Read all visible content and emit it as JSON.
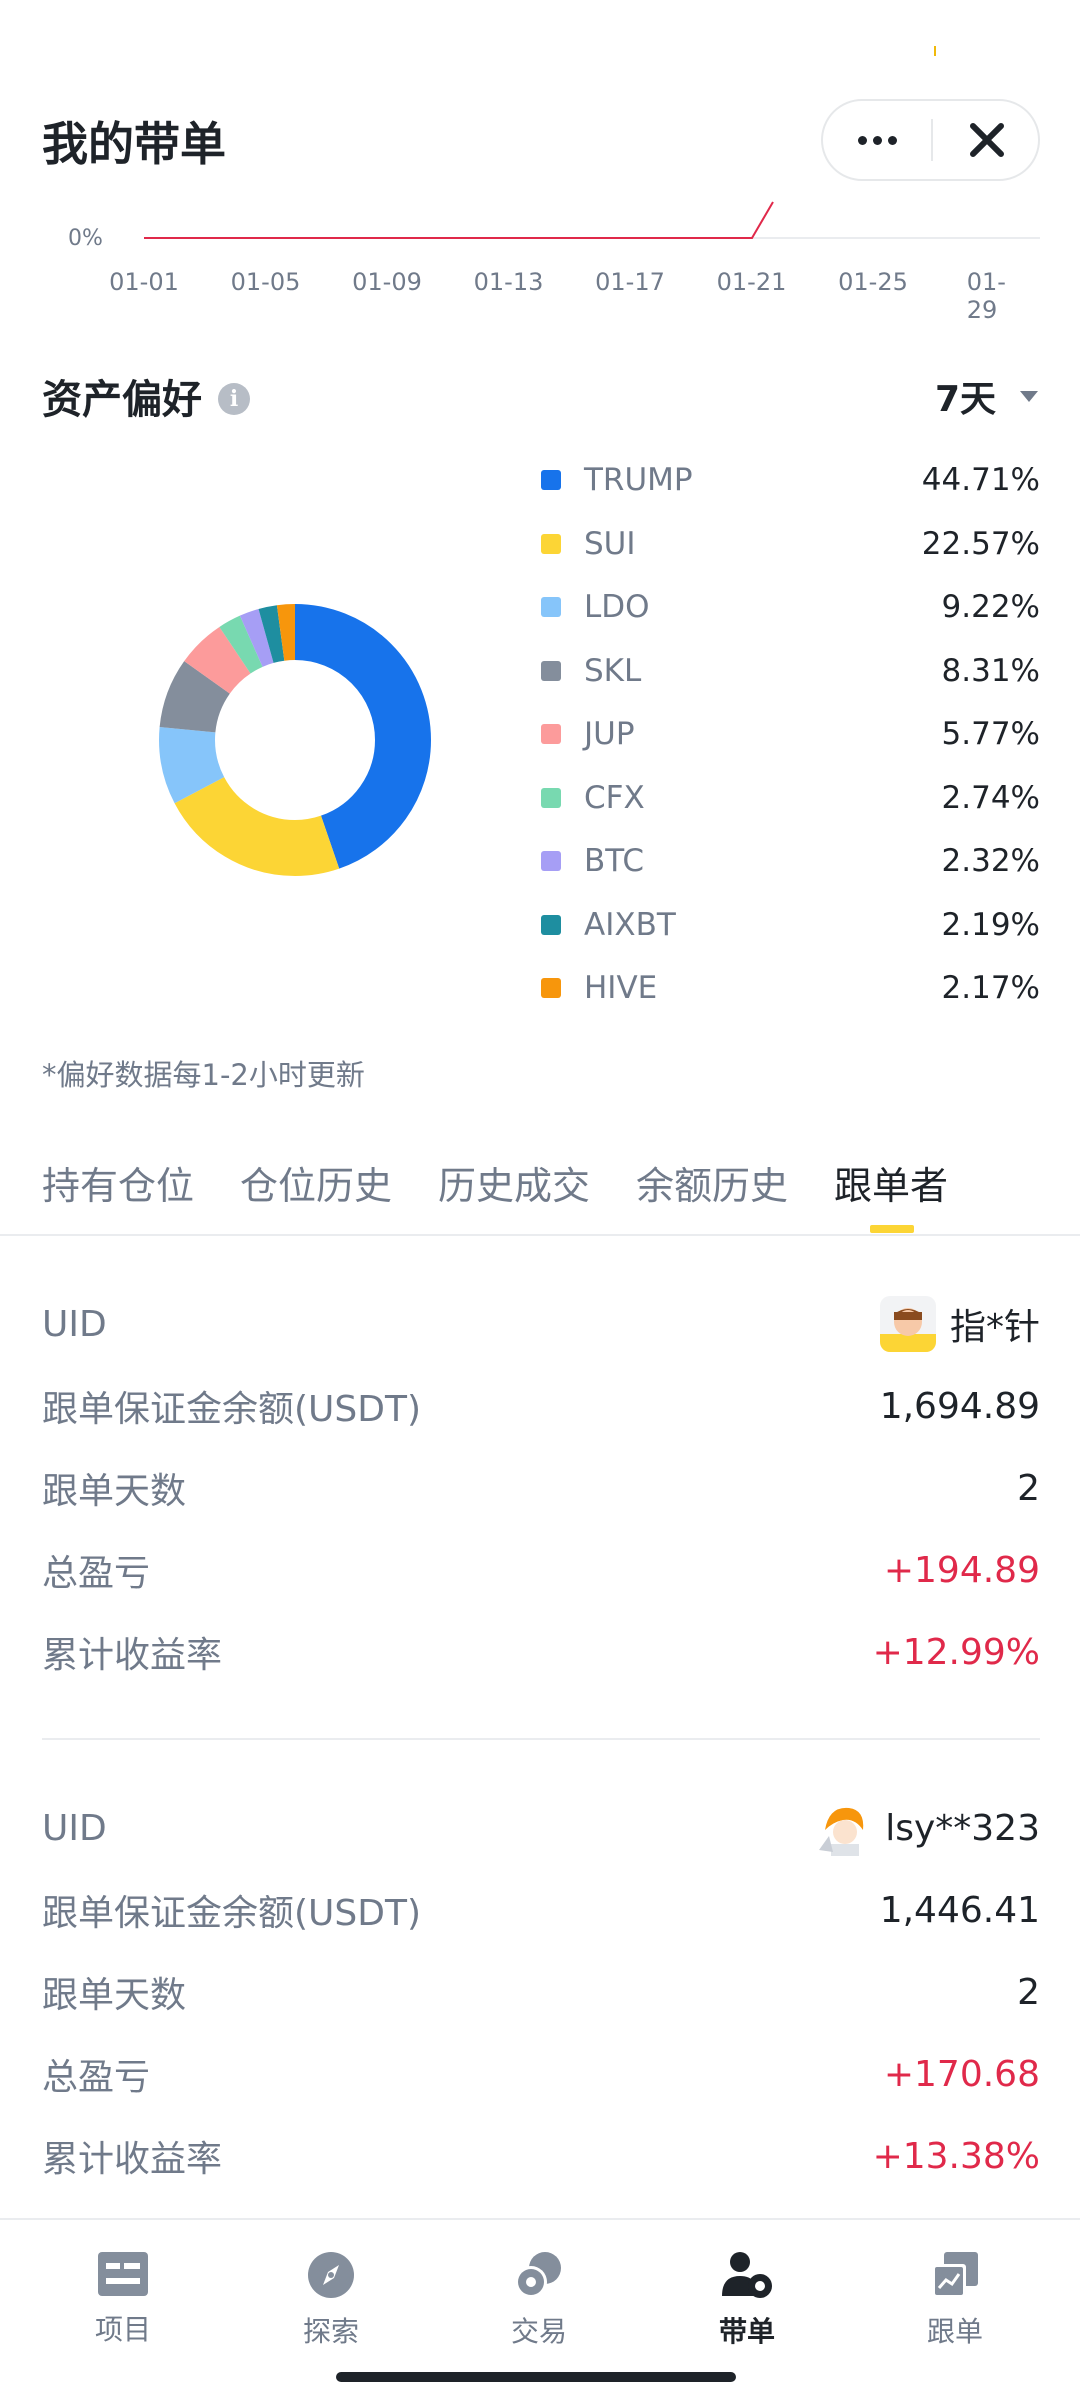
{
  "header": {
    "title": "我的带单"
  },
  "line_chart": {
    "y_label": "0%",
    "x_labels": [
      "01-01",
      "01-05",
      "01-09",
      "01-13",
      "01-17",
      "01-21",
      "01-25",
      "01-29"
    ]
  },
  "asset_preference": {
    "title": "资产偏好",
    "period": "7天",
    "note": "*偏好数据每1-2小时更新"
  },
  "chart_data": {
    "type": "pie",
    "categories": [
      "TRUMP",
      "SUI",
      "LDO",
      "SKL",
      "JUP",
      "CFX",
      "BTC",
      "AIXBT",
      "HIVE"
    ],
    "values": [
      44.71,
      22.57,
      9.22,
      8.31,
      5.77,
      2.74,
      2.32,
      2.19,
      2.17
    ],
    "labels": [
      "44.71%",
      "22.57%",
      "9.22%",
      "8.31%",
      "5.77%",
      "2.74%",
      "2.32%",
      "2.19%",
      "2.17%"
    ],
    "colors": [
      "#1773eb",
      "#fcd535",
      "#86c5fa",
      "#848e9c",
      "#fc9b9b",
      "#78d9b0",
      "#a69ef5",
      "#1e8ea0",
      "#f7960c"
    ],
    "donut": true,
    "legend": "right"
  },
  "tabs": [
    "持有仓位",
    "仓位历史",
    "历史成交",
    "余额历史",
    "跟单者"
  ],
  "active_tab": "跟单者",
  "followers": [
    {
      "uid_label": "UID",
      "name": "指*针",
      "margin_label": "跟单保证金余额(USDT)",
      "margin": "1,694.89",
      "days_label": "跟单天数",
      "days": "2",
      "pnl_label": "总盈亏",
      "pnl": "+194.89",
      "roi_label": "累计收益率",
      "roi": "+12.99%"
    },
    {
      "uid_label": "UID",
      "name": "lsy**323",
      "margin_label": "跟单保证金余额(USDT)",
      "margin": "1,446.41",
      "days_label": "跟单天数",
      "days": "2",
      "pnl_label": "总盈亏",
      "pnl": "+170.68",
      "roi_label": "累计收益率",
      "roi": "+13.38%"
    }
  ],
  "bottom_nav": [
    {
      "label": "项目",
      "icon": "projects-icon"
    },
    {
      "label": "探索",
      "icon": "compass-icon"
    },
    {
      "label": "交易",
      "icon": "trade-coins-icon"
    },
    {
      "label": "带单",
      "icon": "lead-trader-icon"
    },
    {
      "label": "跟单",
      "icon": "copy-trade-icon"
    }
  ],
  "active_nav": "带单",
  "colors": {
    "positive": "#e0294a",
    "accent": "#fcd535",
    "text": "#1e2329",
    "muted": "#707a8a"
  }
}
